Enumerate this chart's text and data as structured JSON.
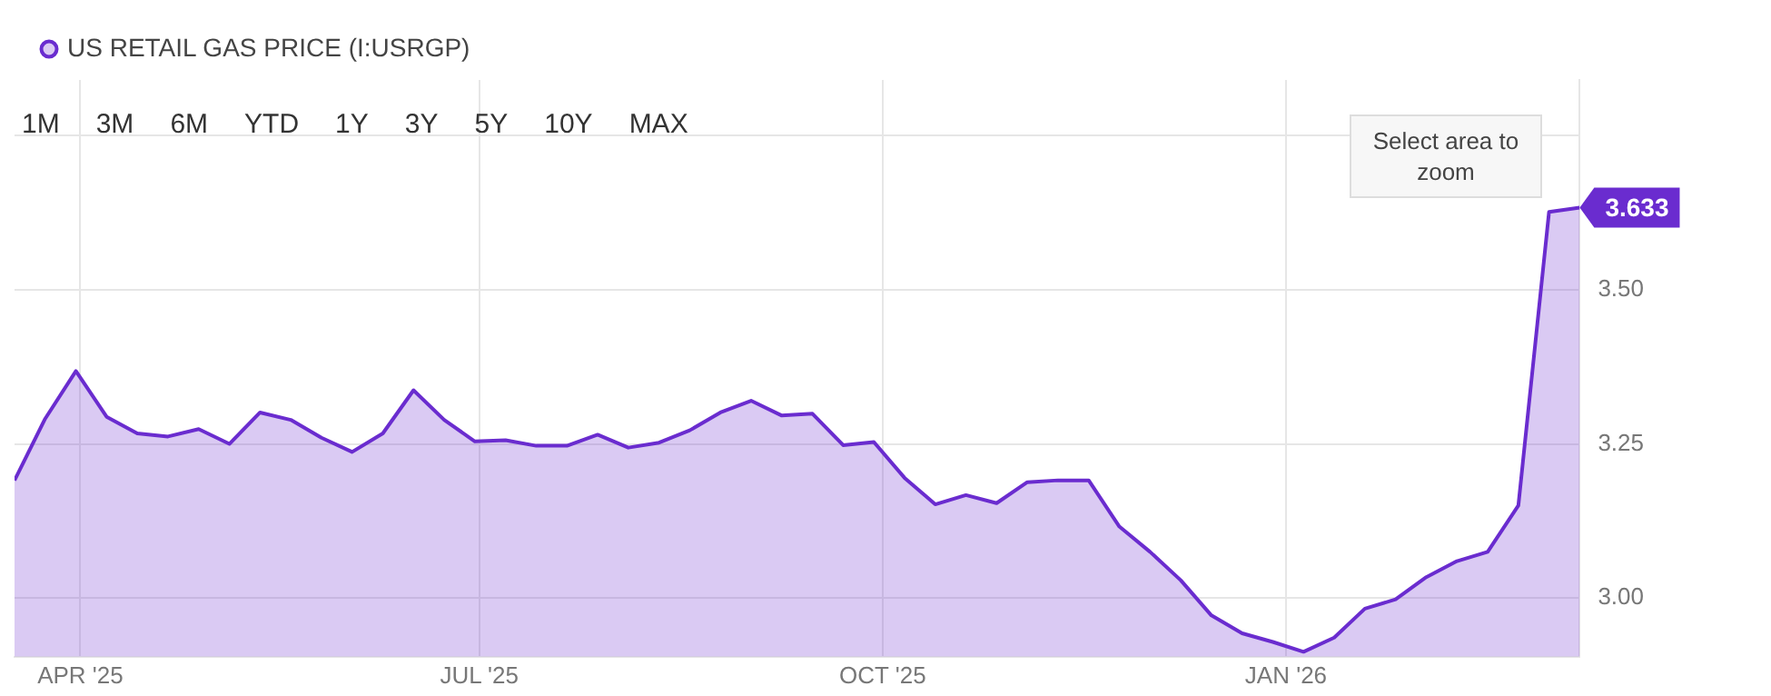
{
  "chart_data": {
    "type": "area",
    "x": [
      "2025-03-17",
      "2025-03-24",
      "2025-03-31",
      "2025-04-07",
      "2025-04-14",
      "2025-04-21",
      "2025-04-28",
      "2025-05-05",
      "2025-05-12",
      "2025-05-19",
      "2025-05-26",
      "2025-06-02",
      "2025-06-09",
      "2025-06-16",
      "2025-06-23",
      "2025-06-30",
      "2025-07-07",
      "2025-07-14",
      "2025-07-21",
      "2025-07-28",
      "2025-08-04",
      "2025-08-11",
      "2025-08-18",
      "2025-08-25",
      "2025-09-01",
      "2025-09-08",
      "2025-09-15",
      "2025-09-22",
      "2025-09-29",
      "2025-10-06",
      "2025-10-13",
      "2025-10-20",
      "2025-10-27",
      "2025-11-03",
      "2025-11-10",
      "2025-11-17",
      "2025-11-24",
      "2025-12-01",
      "2025-12-08",
      "2025-12-15",
      "2025-12-22",
      "2025-12-29",
      "2026-01-05",
      "2026-01-12",
      "2026-01-19",
      "2026-01-26",
      "2026-02-02",
      "2026-02-09",
      "2026-02-16",
      "2026-02-23",
      "2026-03-02",
      "2026-03-09"
    ],
    "series": [
      {
        "name": "US RETAIL GAS PRICE (I:USRGP)",
        "color": "#6a2ccf",
        "values": [
          3.191,
          3.291,
          3.368,
          3.294,
          3.267,
          3.262,
          3.274,
          3.25,
          3.301,
          3.289,
          3.26,
          3.237,
          3.267,
          3.337,
          3.289,
          3.254,
          3.256,
          3.247,
          3.247,
          3.265,
          3.244,
          3.252,
          3.272,
          3.301,
          3.32,
          3.296,
          3.299,
          3.248,
          3.253,
          3.195,
          3.152,
          3.167,
          3.154,
          3.188,
          3.191,
          3.191,
          3.116,
          3.075,
          3.029,
          2.972,
          2.943,
          2.929,
          2.913,
          2.936,
          2.983,
          2.998,
          3.034,
          3.06,
          3.075,
          3.15,
          3.626,
          3.633
        ],
        "value_labels": [
          null,
          null,
          null,
          null,
          null,
          null,
          null,
          null,
          null,
          null,
          null,
          null,
          null,
          null,
          null,
          null,
          null,
          null,
          null,
          null,
          null,
          null,
          null,
          null,
          null,
          null,
          null,
          null,
          null,
          null,
          null,
          null,
          null,
          null,
          null,
          null,
          null,
          null,
          null,
          null,
          null,
          null,
          null,
          null,
          null,
          null,
          null,
          null,
          null,
          null,
          null,
          "3.633"
        ]
      }
    ],
    "xlim": [
      "2025-03-17",
      "2026-03-09"
    ],
    "xticks": [
      {
        "value": "2025-04-01",
        "label": "APR '25"
      },
      {
        "value": "2025-07-01",
        "label": "JUL '25"
      },
      {
        "value": "2025-10-01",
        "label": "OCT '25"
      },
      {
        "value": "2026-01-01",
        "label": "JAN '26"
      }
    ],
    "ylim": [
      2.905,
      3.84
    ],
    "yticks": [
      {
        "value": 3.0,
        "label": "3.00"
      },
      {
        "value": 3.25,
        "label": "3.25"
      },
      {
        "value": 3.5,
        "label": "3.50"
      },
      {
        "value": 3.75,
        "label": null
      }
    ],
    "grid": true,
    "legend": "top left",
    "marker": "none",
    "line_style": "solid",
    "annotations": [
      "1M",
      "3M",
      "6M",
      "YTD",
      "1Y",
      "3Y",
      "5Y",
      "10Y",
      "MAX",
      "Select area to zoom"
    ]
  }
}
